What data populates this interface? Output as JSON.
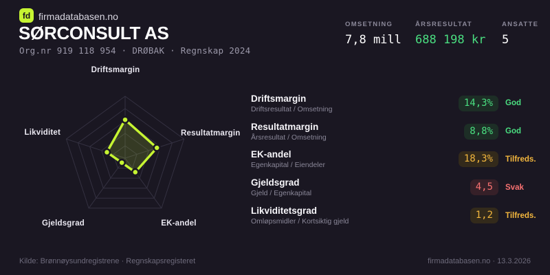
{
  "brand": {
    "logo": "fd",
    "site": "firmadatabasen.no"
  },
  "header": {
    "title": "SØRCONSULT AS",
    "subtitle": "Org.nr 919 118 954 · DRØBAK · Regnskap 2024"
  },
  "stats": [
    {
      "label": "OMSETNING",
      "value": "7,8 mill"
    },
    {
      "label": "ÅRSRESULTAT",
      "value": "688 198 kr"
    },
    {
      "label": "ANSATTE",
      "value": "5"
    }
  ],
  "chart_data": {
    "type": "radar",
    "categories": [
      "Driftsmargin",
      "Resultatmargin",
      "EK-andel",
      "Gjeldsgrad",
      "Likviditet"
    ],
    "values": [
      0.62,
      0.54,
      0.28,
      0.09,
      0.31
    ],
    "max": 1,
    "rings": 5,
    "grid": true,
    "legend": "none",
    "accent": "#c6f432"
  },
  "metrics": [
    {
      "name": "Driftsmargin",
      "formula": "Driftsresultat / Omsetning",
      "value": "14,3%",
      "status": "God",
      "tone": "good"
    },
    {
      "name": "Resultatmargin",
      "formula": "Årsresultat / Omsetning",
      "value": "8,8%",
      "status": "God",
      "tone": "good"
    },
    {
      "name": "EK-andel",
      "formula": "Egenkapital / Eiendeler",
      "value": "18,3%",
      "status": "Tilfreds.",
      "tone": "mid"
    },
    {
      "name": "Gjeldsgrad",
      "formula": "Gjeld / Egenkapital",
      "value": "4,5",
      "status": "Svak",
      "tone": "bad"
    },
    {
      "name": "Likviditetsgrad",
      "formula": "Omløpsmidler / Kortsiktig gjeld",
      "value": "1,2",
      "status": "Tilfreds.",
      "tone": "mid"
    }
  ],
  "footer": {
    "source": "Kilde: Brønnøysundregistrene · Regnskapsregisteret",
    "brand_date": "firmadatabasen.no · 13.3.2026"
  },
  "colors": {
    "background": "#1a1722",
    "accent": "#c6f432",
    "good": "#4ade80",
    "satisfactory": "#f2b63d",
    "weak": "#f87171",
    "grid": "#343141",
    "result_value": "#4ade80"
  }
}
